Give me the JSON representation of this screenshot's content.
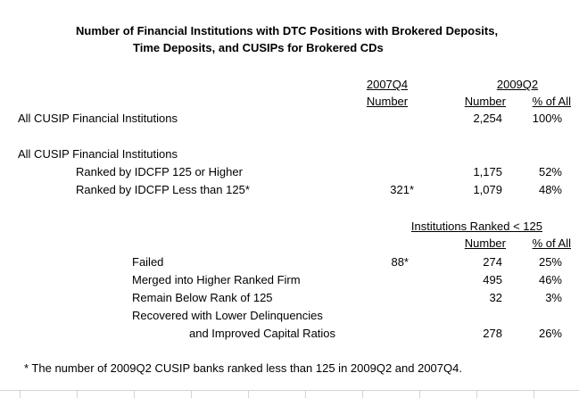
{
  "title": {
    "line1": "Number of Financial Institutions with DTC Positions with Brokered Deposits,",
    "line2": "Time Deposits, and CUSIPs for Brokered CDs"
  },
  "headers": {
    "col_2007q4": "2007Q4",
    "col_2007q4_sub": "Number",
    "col_2009q2": "2009Q2",
    "col_2009q2_number": "Number",
    "col_2009q2_pct": "% of All"
  },
  "section1": {
    "label": "All CUSIP Financial Institutions",
    "number": "2,254",
    "pct": "100%"
  },
  "section2": {
    "label": "All CUSIP Financial Institutions",
    "rows": [
      {
        "label": "Ranked by IDCFP 125 or Higher",
        "q4": "",
        "number": "1,175",
        "pct": "52%"
      },
      {
        "label": "Ranked by IDCFP Less than 125*",
        "q4": "321*",
        "number": "1,079",
        "pct": "48%"
      }
    ]
  },
  "section3": {
    "header": "Institutions Ranked < 125",
    "number_header": "Number",
    "pct_header": "% of All",
    "rows": [
      {
        "label": "Failed",
        "q4": "88*",
        "number": "274",
        "pct": "25%"
      },
      {
        "label": "Merged into Higher Ranked Firm",
        "q4": "",
        "number": "495",
        "pct": "46%"
      },
      {
        "label": "Remain Below Rank of 125",
        "q4": "",
        "number": "32",
        "pct": "3%"
      },
      {
        "label": "Recovered with Lower Delinquencies",
        "q4": "",
        "number": "",
        "pct": ""
      },
      {
        "label": "and Improved Capital Ratios",
        "q4": "",
        "number": "278",
        "pct": "26%"
      }
    ]
  },
  "footnote": "* The number of 2009Q2 CUSIP banks ranked less than 125 in 2009Q2 and 2007Q4."
}
